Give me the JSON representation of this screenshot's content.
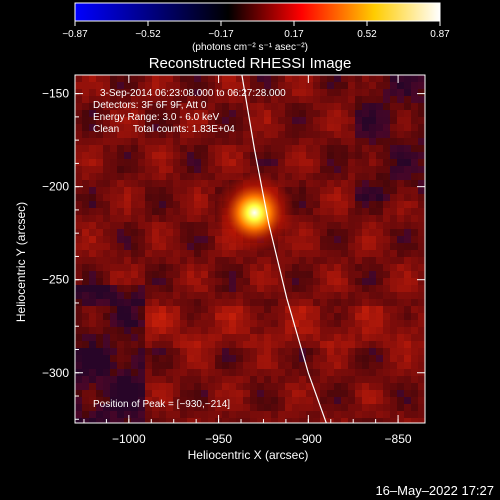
{
  "chart_data": {
    "type": "heatmap",
    "title": "Reconstructed RHESSI Image",
    "xlabel": "Heliocentric X (arcsec)",
    "ylabel": "Heliocentric Y (arcsec)",
    "xlim": [
      -1030,
      -835
    ],
    "ylim": [
      -327,
      -140
    ],
    "x_ticks": [
      -1000,
      -950,
      -900,
      -850
    ],
    "y_ticks": [
      -150,
      -200,
      -250,
      -300
    ],
    "x_tick_labels": [
      "−1000",
      "−950",
      "−900",
      "−850"
    ],
    "y_tick_labels": [
      "−150",
      "−200",
      "−250",
      "−300"
    ],
    "colorbar": {
      "min": -0.87,
      "max": 0.87,
      "tick_labels": [
        "−0.87",
        "−0.52",
        "−0.17",
        "0.17",
        "0.52",
        "0.87"
      ],
      "unit_label": "(photons cm⁻² s⁻¹ asec⁻²)",
      "colors": [
        "#0000ff",
        "#000000",
        "#ff0000",
        "#ffff00",
        "#ffffff"
      ]
    },
    "info_lines": [
      "3-Sep-2014 06:23:08.000 to 06:27:28.000",
      "Detectors: 3F 6F 9F, Att 0",
      "Energy Range: 3.0 - 6.0 keV",
      "Clean     Total counts: 1.83E+04"
    ],
    "peak_text": "Position of Peak = [−930,−214]",
    "peak": {
      "x": -930,
      "y": -214
    },
    "limb": [
      [
        -937,
        -140
      ],
      [
        -930,
        -180
      ],
      [
        -922,
        -220
      ],
      [
        -912,
        -260
      ],
      [
        -900,
        -300
      ],
      [
        -890,
        -327
      ]
    ]
  },
  "footer": {
    "date": "16–May–2022 17:27"
  }
}
